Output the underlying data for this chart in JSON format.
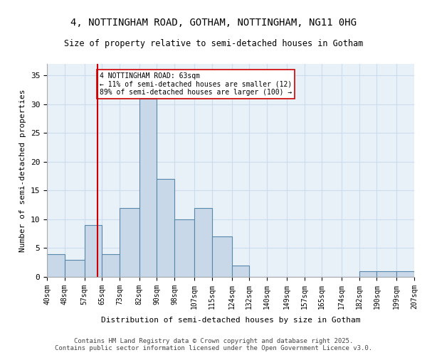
{
  "title1": "4, NOTTINGHAM ROAD, GOTHAM, NOTTINGHAM, NG11 0HG",
  "title2": "Size of property relative to semi-detached houses in Gotham",
  "xlabel": "Distribution of semi-detached houses by size in Gotham",
  "ylabel": "Number of semi-detached properties",
  "bins": [
    40,
    48,
    57,
    65,
    73,
    82,
    90,
    98,
    107,
    115,
    124,
    132,
    140,
    149,
    157,
    165,
    174,
    182,
    190,
    199,
    207
  ],
  "counts": [
    4,
    3,
    9,
    4,
    12,
    31,
    17,
    10,
    12,
    7,
    2,
    0,
    0,
    0,
    0,
    0,
    0,
    1,
    1,
    1
  ],
  "bar_facecolor": "#c8d8e8",
  "bar_edgecolor": "#5588aa",
  "vline_x": 63,
  "vline_color": "#cc0000",
  "annotation_text": "4 NOTTINGHAM ROAD: 63sqm\n← 11% of semi-detached houses are smaller (12)\n89% of semi-detached houses are larger (100) →",
  "annotation_box_edgecolor": "#cc0000",
  "annotation_box_facecolor": "#ffffff",
  "ylim": [
    0,
    37
  ],
  "yticks": [
    0,
    5,
    10,
    15,
    20,
    25,
    30,
    35
  ],
  "grid_color": "#ccddee",
  "background_color": "#e8f0f8",
  "footer_text": "Contains HM Land Registry data © Crown copyright and database right 2025.\nContains public sector information licensed under the Open Government Licence v3.0.",
  "tick_labels": [
    "40sqm",
    "48sqm",
    "57sqm",
    "65sqm",
    "73sqm",
    "82sqm",
    "90sqm",
    "98sqm",
    "107sqm",
    "115sqm",
    "124sqm",
    "132sqm",
    "140sqm",
    "149sqm",
    "157sqm",
    "165sqm",
    "174sqm",
    "182sqm",
    "190sqm",
    "199sqm",
    "207sqm"
  ]
}
